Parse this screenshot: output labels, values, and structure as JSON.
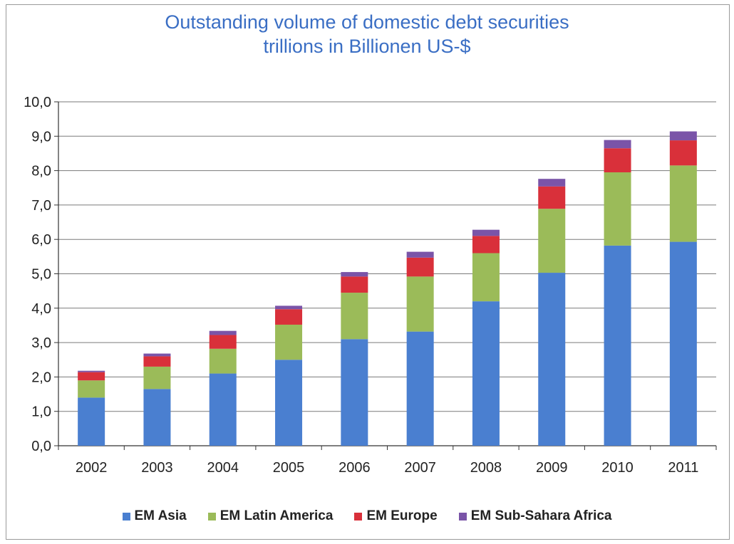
{
  "chart_data": {
    "type": "bar",
    "stacked": true,
    "title": "Outstanding volume of domestic debt securities",
    "subtitle": "trillions in Billionen US-$",
    "xlabel": "",
    "ylabel": "",
    "categories": [
      "2002",
      "2003",
      "2004",
      "2005",
      "2006",
      "2007",
      "2008",
      "2009",
      "2010",
      "2011"
    ],
    "ylim": [
      0,
      10
    ],
    "yticks": [
      "0,0",
      "1,0",
      "2,0",
      "3,0",
      "4,0",
      "5,0",
      "6,0",
      "7,0",
      "8,0",
      "9,0",
      "10,0"
    ],
    "grid": true,
    "legend_position": "bottom",
    "series": [
      {
        "name": "EM Asia",
        "color": "#4a7fd0",
        "values": [
          1.4,
          1.65,
          2.1,
          2.5,
          3.1,
          3.32,
          4.2,
          5.03,
          5.82,
          5.93
        ]
      },
      {
        "name": "EM Latin America",
        "color": "#9bbb59",
        "values": [
          0.5,
          0.65,
          0.72,
          1.02,
          1.35,
          1.6,
          1.4,
          1.86,
          2.13,
          2.22
        ]
      },
      {
        "name": "EM Europe",
        "color": "#d9303a",
        "values": [
          0.24,
          0.3,
          0.4,
          0.45,
          0.47,
          0.55,
          0.5,
          0.65,
          0.7,
          0.73
        ]
      },
      {
        "name": "EM Sub-Sahara Africa",
        "color": "#7a54a8",
        "values": [
          0.04,
          0.08,
          0.12,
          0.1,
          0.13,
          0.17,
          0.18,
          0.22,
          0.24,
          0.26
        ]
      }
    ]
  }
}
